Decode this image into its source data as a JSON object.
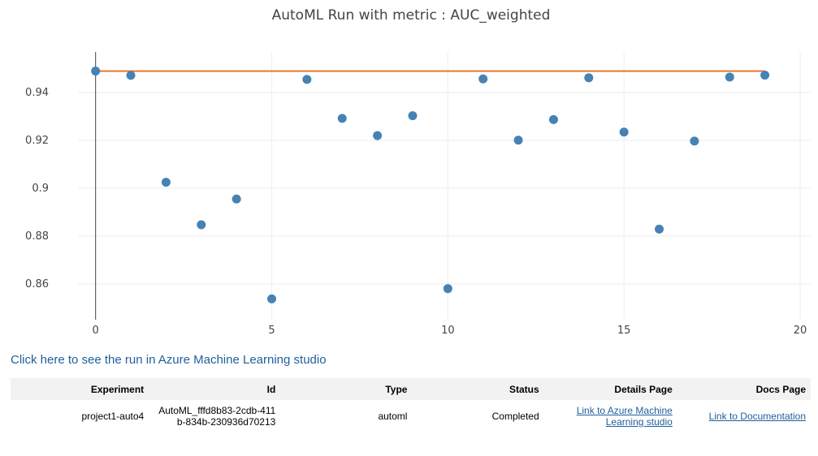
{
  "chart_data": {
    "type": "scatter",
    "title": "AutoML Run with metric : AUC_weighted",
    "xlabel": "",
    "ylabel": "",
    "xlim": [
      -0.5,
      20.3
    ],
    "ylim": [
      0.845,
      0.957
    ],
    "x_ticks": [
      0,
      5,
      10,
      15,
      20
    ],
    "y_ticks": [
      0.86,
      0.88,
      0.9,
      0.92,
      0.94
    ],
    "x_tick_labels": [
      "0",
      "5",
      "10",
      "15",
      "20"
    ],
    "y_tick_labels": [
      "0.86",
      "0.88",
      "0.9",
      "0.92",
      "0.94"
    ],
    "grid": true,
    "series": [
      {
        "mode": "markers",
        "color": "#4682b4",
        "x": [
          0,
          1,
          2,
          3,
          4,
          5,
          6,
          7,
          8,
          9,
          10,
          11,
          12,
          13,
          14,
          15,
          16,
          17,
          18,
          19
        ],
        "values": [
          0.949,
          0.9472,
          0.9025,
          0.8847,
          0.8955,
          0.8537,
          0.9455,
          0.9292,
          0.922,
          0.9303,
          0.858,
          0.9457,
          0.9201,
          0.9287,
          0.9462,
          0.9235,
          0.8829,
          0.9197,
          0.9465,
          0.9473
        ]
      },
      {
        "mode": "lines",
        "color": "#e8792e",
        "x": [
          0,
          19
        ],
        "values": [
          0.949,
          0.949
        ]
      }
    ]
  },
  "studio_link": {
    "label": "Click here to see the run in Azure Machine Learning studio"
  },
  "run_table": {
    "headers": {
      "experiment": "Experiment",
      "id": "Id",
      "type": "Type",
      "status": "Status",
      "details": "Details Page",
      "docs": "Docs Page"
    },
    "row": {
      "experiment": "project1-auto4",
      "id": "AutoML_fffd8b83-2cdb-411b-834b-230936d70213",
      "type": "automl",
      "status": "Completed",
      "details_link": "Link to Azure Machine Learning studio",
      "docs_link": "Link to Documentation"
    }
  }
}
